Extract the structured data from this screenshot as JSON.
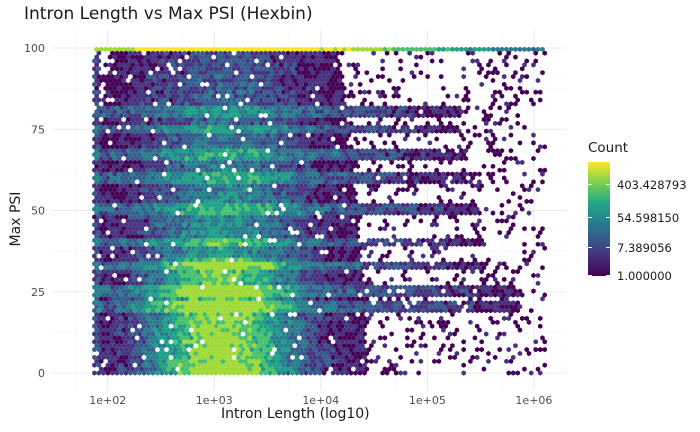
{
  "chart_data": {
    "type": "hexbin",
    "title": "Intron Length vs Max PSI (Hexbin)",
    "xlabel": "Intron Length (log10)",
    "ylabel": "Max PSI",
    "x_scale": "log10",
    "xlim": [
      30,
      2000000
    ],
    "ylim": [
      0,
      100
    ],
    "x_ticks": [
      100,
      1000,
      10000,
      100000,
      1000000
    ],
    "x_tick_labels": [
      "1e+02",
      "1e+03",
      "1e+04",
      "1e+05",
      "1e+06"
    ],
    "y_ticks": [
      0,
      25,
      50,
      75,
      100
    ],
    "y_tick_labels": [
      "0",
      "25",
      "50",
      "75",
      "100"
    ],
    "grid": true,
    "legend": {
      "title": "Count",
      "position": "right",
      "entries": [
        "403.428793",
        "54.598150",
        "7.389056",
        "1.000000"
      ],
      "scale": "log"
    },
    "colors": [
      "#440154",
      "#414487",
      "#2a788e",
      "#22a884",
      "#7ad151",
      "#fde725"
    ]
  }
}
